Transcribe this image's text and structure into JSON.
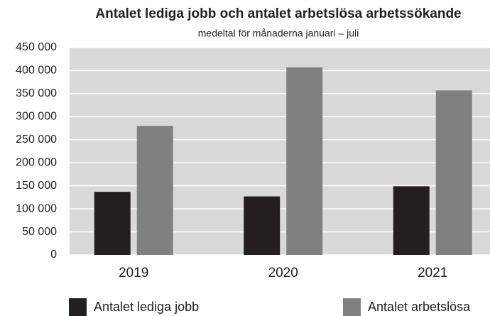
{
  "chart_data": {
    "type": "bar",
    "title": "Antalet lediga jobb och antalet arbetslösa arbetssökande",
    "subtitle": "medeltal för månaderna januari – juli",
    "categories": [
      "2019",
      "2020",
      "2021"
    ],
    "series": [
      {
        "name": "Antalet lediga jobb",
        "color": "#231f20",
        "values": [
          137000,
          127000,
          149000
        ]
      },
      {
        "name": "Antalet arbetslösa",
        "color": "#808080",
        "values": [
          280000,
          407000,
          357000
        ]
      }
    ],
    "ylim": [
      0,
      450000
    ],
    "yticks": [
      0,
      {
        "value": 50000,
        "label": "50 000"
      },
      {
        "value": 100000,
        "label": "100 000"
      },
      {
        "value": 150000,
        "label": "150 000"
      },
      {
        "value": 200000,
        "label": "200 000"
      },
      {
        "value": 250000,
        "label": "250 000"
      },
      {
        "value": 300000,
        "label": "300 000"
      },
      {
        "value": 350000,
        "label": "350 000"
      },
      {
        "value": 400000,
        "label": "400 000"
      },
      {
        "value": 450000,
        "label": "450 000"
      }
    ],
    "grid": true,
    "legend": "bottom"
  }
}
